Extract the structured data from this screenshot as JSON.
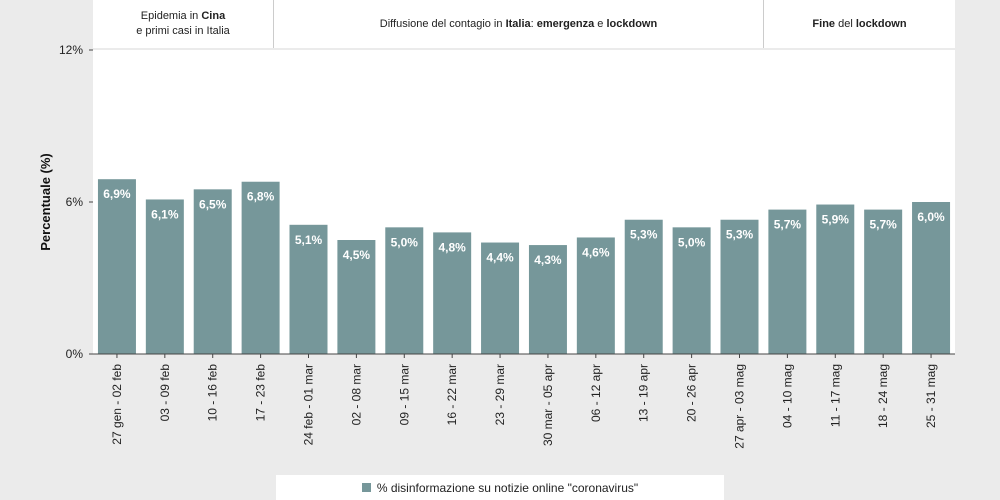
{
  "header": {
    "sections": [
      {
        "parts": [
          {
            "t": "Epidemia in ",
            "b": false
          },
          {
            "t": "Cina",
            "b": true
          }
        ],
        "line2": "e primi casi in Italia"
      },
      {
        "parts": [
          {
            "t": "Diffusione del contagio in ",
            "b": false
          },
          {
            "t": "Italia",
            "b": true
          },
          {
            "t": ": ",
            "b": false
          },
          {
            "t": "emergenza",
            "b": true
          },
          {
            "t": " e ",
            "b": false
          },
          {
            "t": "lockdown",
            "b": true
          }
        ],
        "line2": ""
      },
      {
        "parts": [
          {
            "t": "Fine",
            "b": true
          },
          {
            "t": " del ",
            "b": false
          },
          {
            "t": "lockdown",
            "b": true
          }
        ],
        "line2": ""
      }
    ]
  },
  "chart_data": {
    "type": "bar",
    "ylabel": "Percentuale (%)",
    "ylim": [
      0,
      12
    ],
    "yticks": [
      "0%",
      "6%",
      "12%"
    ],
    "grid": false,
    "legend_position": "bottom",
    "categories": [
      "27 gen - 02 feb",
      "03 - 09 feb",
      "10 - 16 feb",
      "17 - 23 feb",
      "24 feb - 01 mar",
      "02 - 08 mar",
      "09 - 15 mar",
      "16 - 22 mar",
      "23 - 29 mar",
      "30 mar - 05 apr",
      "06 - 12 apr",
      "13 - 19 apr",
      "20 - 26 apr",
      "27 apr - 03 mag",
      "04 - 10 mag",
      "11 - 17 mag",
      "18 - 24 mag",
      "25 - 31 mag"
    ],
    "series": [
      {
        "name": "% disinformazione su notizie online \"coronavirus\"",
        "color": "#76979a",
        "values": [
          6.9,
          6.1,
          6.5,
          6.8,
          5.1,
          4.5,
          5.0,
          4.8,
          4.4,
          4.3,
          4.6,
          5.3,
          5.0,
          5.3,
          5.7,
          5.9,
          5.7,
          6.0
        ],
        "labels": [
          "6,9%",
          "6,1%",
          "6,5%",
          "6,8%",
          "5,1%",
          "4,5%",
          "5,0%",
          "4,8%",
          "4,4%",
          "4,3%",
          "4,6%",
          "5,3%",
          "5,0%",
          "5,3%",
          "5,7%",
          "5,9%",
          "5,7%",
          "6,0%"
        ]
      }
    ]
  }
}
